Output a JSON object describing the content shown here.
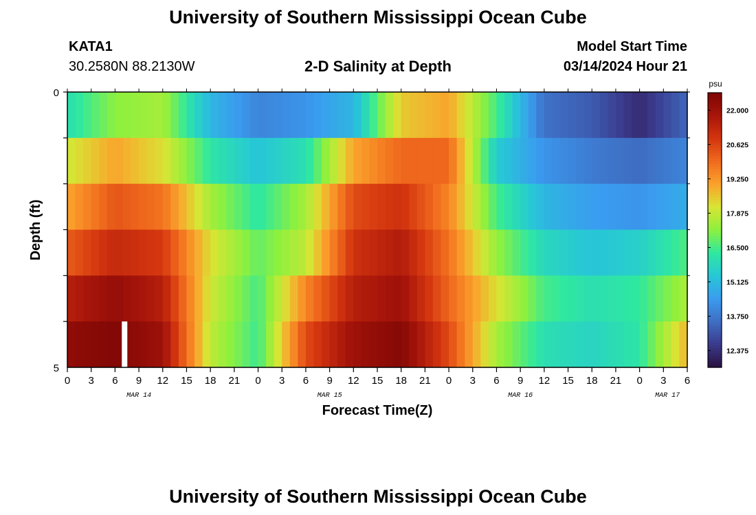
{
  "header": {
    "title": "University of Southern Mississippi Ocean Cube",
    "station": "KATA1",
    "coords": "30.2580N  88.2130W",
    "plot_title": "2-D Salinity at Depth",
    "model_start_label": "Model Start Time",
    "model_start_value": "03/14/2024 Hour 21"
  },
  "footer": {
    "title": "University of Southern Mississippi Ocean Cube"
  },
  "chart_data": {
    "type": "heatmap",
    "title": "2-D Salinity at Depth",
    "xlabel": "Forecast Time(Z)",
    "ylabel": "Depth (ft)",
    "x_tick_labels": [
      "0",
      "3",
      "6",
      "9",
      "12",
      "15",
      "18",
      "21",
      "0",
      "3",
      "6",
      "9",
      "12",
      "15",
      "18",
      "21",
      "0",
      "3",
      "6",
      "9",
      "12",
      "15",
      "18",
      "21",
      "0",
      "3",
      "6"
    ],
    "date_labels": [
      "MAR 14",
      "MAR 15",
      "MAR 16",
      "MAR 17"
    ],
    "y_tick_labels": [
      "0",
      "5"
    ],
    "ylim": [
      0,
      5
    ],
    "x_hours_range": [
      0,
      78
    ],
    "colorbar": {
      "unit": "psu",
      "min": 11.7,
      "max": 22.7,
      "tick_labels": [
        "22.000",
        "20.625",
        "19.250",
        "17.875",
        "16.500",
        "15.125",
        "13.750",
        "12.375"
      ],
      "tick_values": [
        22.0,
        20.625,
        19.25,
        17.875,
        16.5,
        15.125,
        13.75,
        12.375
      ],
      "colors": [
        "#2a1140",
        "#3b3a8c",
        "#3e6ec4",
        "#3a9cf0",
        "#27c7d6",
        "#2fe8a0",
        "#8df03e",
        "#d8e534",
        "#fba22c",
        "#f06a1d",
        "#d3350f",
        "#a8150a",
        "#7d0605"
      ]
    },
    "depth_layers": [
      0,
      1,
      2,
      3,
      4,
      5
    ],
    "hours": [
      0,
      6,
      12,
      18,
      24,
      30,
      36,
      42,
      48,
      54,
      60,
      66,
      72,
      78
    ],
    "salinity_rows": [
      [
        16.0,
        17.2,
        17.5,
        15.0,
        14.0,
        14.3,
        15.0,
        18.5,
        19.0,
        16.5,
        13.6,
        13.2,
        12.3,
        13.4
      ],
      [
        18.0,
        19.0,
        18.2,
        16.2,
        15.3,
        16.0,
        19.0,
        20.0,
        20.0,
        15.5,
        14.3,
        13.8,
        13.5,
        14.0
      ],
      [
        19.0,
        20.3,
        19.8,
        17.5,
        16.2,
        17.5,
        20.5,
        21.0,
        19.5,
        16.5,
        15.0,
        14.5,
        14.3,
        14.8
      ],
      [
        20.2,
        21.2,
        20.8,
        18.2,
        16.8,
        17.8,
        21.0,
        21.6,
        19.8,
        17.3,
        15.8,
        15.3,
        15.6,
        16.6
      ],
      [
        21.5,
        22.2,
        21.5,
        18.0,
        16.5,
        19.5,
        21.5,
        22.0,
        20.0,
        18.2,
        16.5,
        16.0,
        16.3,
        17.6
      ],
      [
        22.3,
        22.6,
        22.0,
        17.8,
        16.4,
        20.5,
        22.0,
        22.5,
        20.5,
        17.5,
        16.0,
        15.7,
        16.2,
        18.8
      ]
    ],
    "gap_marker_hour": 7.2
  }
}
